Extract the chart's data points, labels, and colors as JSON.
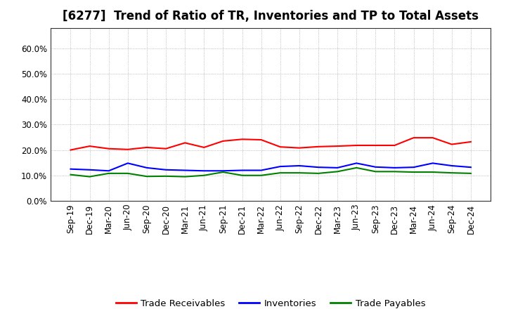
{
  "title": "[6277]  Trend of Ratio of TR, Inventories and TP to Total Assets",
  "x_labels": [
    "Sep-19",
    "Dec-19",
    "Mar-20",
    "Jun-20",
    "Sep-20",
    "Dec-20",
    "Mar-21",
    "Jun-21",
    "Sep-21",
    "Dec-21",
    "Mar-22",
    "Jun-22",
    "Sep-22",
    "Dec-22",
    "Mar-23",
    "Jun-23",
    "Sep-23",
    "Dec-23",
    "Mar-24",
    "Jun-24",
    "Sep-24",
    "Dec-24"
  ],
  "trade_receivables": [
    0.2,
    0.215,
    0.205,
    0.202,
    0.21,
    0.205,
    0.228,
    0.21,
    0.235,
    0.242,
    0.24,
    0.212,
    0.208,
    0.213,
    0.215,
    0.218,
    0.218,
    0.218,
    0.248,
    0.248,
    0.222,
    0.232
  ],
  "inventories": [
    0.125,
    0.122,
    0.118,
    0.148,
    0.13,
    0.122,
    0.12,
    0.118,
    0.118,
    0.12,
    0.12,
    0.135,
    0.138,
    0.132,
    0.13,
    0.148,
    0.133,
    0.13,
    0.132,
    0.148,
    0.138,
    0.132
  ],
  "trade_payables": [
    0.103,
    0.095,
    0.108,
    0.108,
    0.096,
    0.097,
    0.095,
    0.1,
    0.113,
    0.1,
    0.1,
    0.11,
    0.11,
    0.108,
    0.115,
    0.13,
    0.115,
    0.115,
    0.113,
    0.113,
    0.11,
    0.108
  ],
  "ylim": [
    0.0,
    0.68
  ],
  "yticks": [
    0.0,
    0.1,
    0.2,
    0.3,
    0.4,
    0.5,
    0.6
  ],
  "tr_color": "#ff0000",
  "inv_color": "#0000ff",
  "tp_color": "#008000",
  "bg_color": "#ffffff",
  "grid_color": "#aaaaaa",
  "legend_labels": [
    "Trade Receivables",
    "Inventories",
    "Trade Payables"
  ],
  "title_fontsize": 12,
  "axis_fontsize": 8.5,
  "legend_fontsize": 9.5
}
